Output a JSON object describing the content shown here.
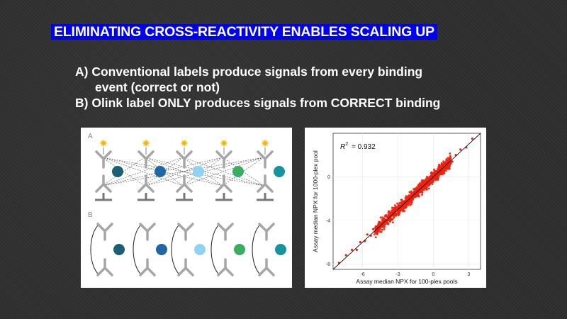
{
  "slide": {
    "title": "ELIMINATING CROSS-REACTIVITY ENABLES SCALING UP",
    "bullets": [
      {
        "line1": "A) Conventional labels produce signals from every binding",
        "line2": "event (correct or not)"
      },
      {
        "line1": "B) Olink label ONLY produces signals from CORRECT binding",
        "line2": ""
      }
    ]
  },
  "figure_left": {
    "panel_a_label": "A",
    "panel_b_label": "B",
    "antigen_colors": [
      "#1a5f73",
      "#1f66a6",
      "#8fd3f2",
      "#3aad62",
      "#14949e"
    ],
    "label_star_color": "#f7b500",
    "antibody_color": "#a6a6a6"
  },
  "figure_right": {
    "r2_label": "R",
    "r2_sup": "2",
    "r2_value": "= 0.932",
    "xlabel": "Assay median NPX for 100-plex pools",
    "ylabel": "Assay median NPX for 1000-plex pool",
    "point_color": "#ee2211"
  },
  "chart_data": {
    "type": "scatter",
    "title": "",
    "xlabel": "Assay median NPX for 100-plex pools",
    "ylabel": "Assay median NPX for 1000-plex pool",
    "x_ticks": [
      "-6",
      "-3",
      "0",
      "3"
    ],
    "y_ticks": [
      "0",
      "-4",
      "-8"
    ],
    "xlim": [
      -8.5,
      4
    ],
    "ylim": [
      -8.5,
      4
    ],
    "annotation": "R² = 0.932",
    "r_squared": 0.932,
    "fit_line": {
      "slope": 1,
      "intercept": 0
    },
    "series": [
      {
        "x": [
          -8.0,
          -7.4,
          -6.9,
          -6.5,
          -6.2,
          -5.8,
          -5.6,
          -5.3,
          -5.1,
          -4.9,
          -4.7,
          -4.5,
          -4.3,
          -4.1,
          -3.9,
          -3.7,
          -3.5,
          -3.3,
          -3.1,
          -2.9,
          -2.7,
          -2.5,
          -2.3,
          -2.1,
          -1.9,
          -1.7,
          -1.5,
          -1.3,
          -1.1,
          -0.9,
          -0.7,
          -0.5,
          -0.3,
          -0.1,
          0.1,
          0.3,
          0.5,
          0.7,
          0.9,
          1.1,
          1.3,
          1.6,
          1.9,
          2.3,
          2.8,
          3.3
        ],
        "y": [
          -7.9,
          -7.2,
          -6.7,
          -6.7,
          -6.0,
          -5.9,
          -5.3,
          -5.4,
          -4.8,
          -5.1,
          -4.5,
          -4.7,
          -4.1,
          -4.3,
          -3.7,
          -3.9,
          -3.3,
          -3.5,
          -2.9,
          -3.1,
          -2.5,
          -2.7,
          -2.1,
          -2.3,
          -1.7,
          -1.9,
          -1.3,
          -1.5,
          -0.9,
          -1.1,
          -0.5,
          -0.7,
          -0.1,
          -0.3,
          0.3,
          0.1,
          0.7,
          0.5,
          1.1,
          0.9,
          1.5,
          1.4,
          2.0,
          2.5,
          2.7,
          3.5
        ]
      }
    ]
  }
}
